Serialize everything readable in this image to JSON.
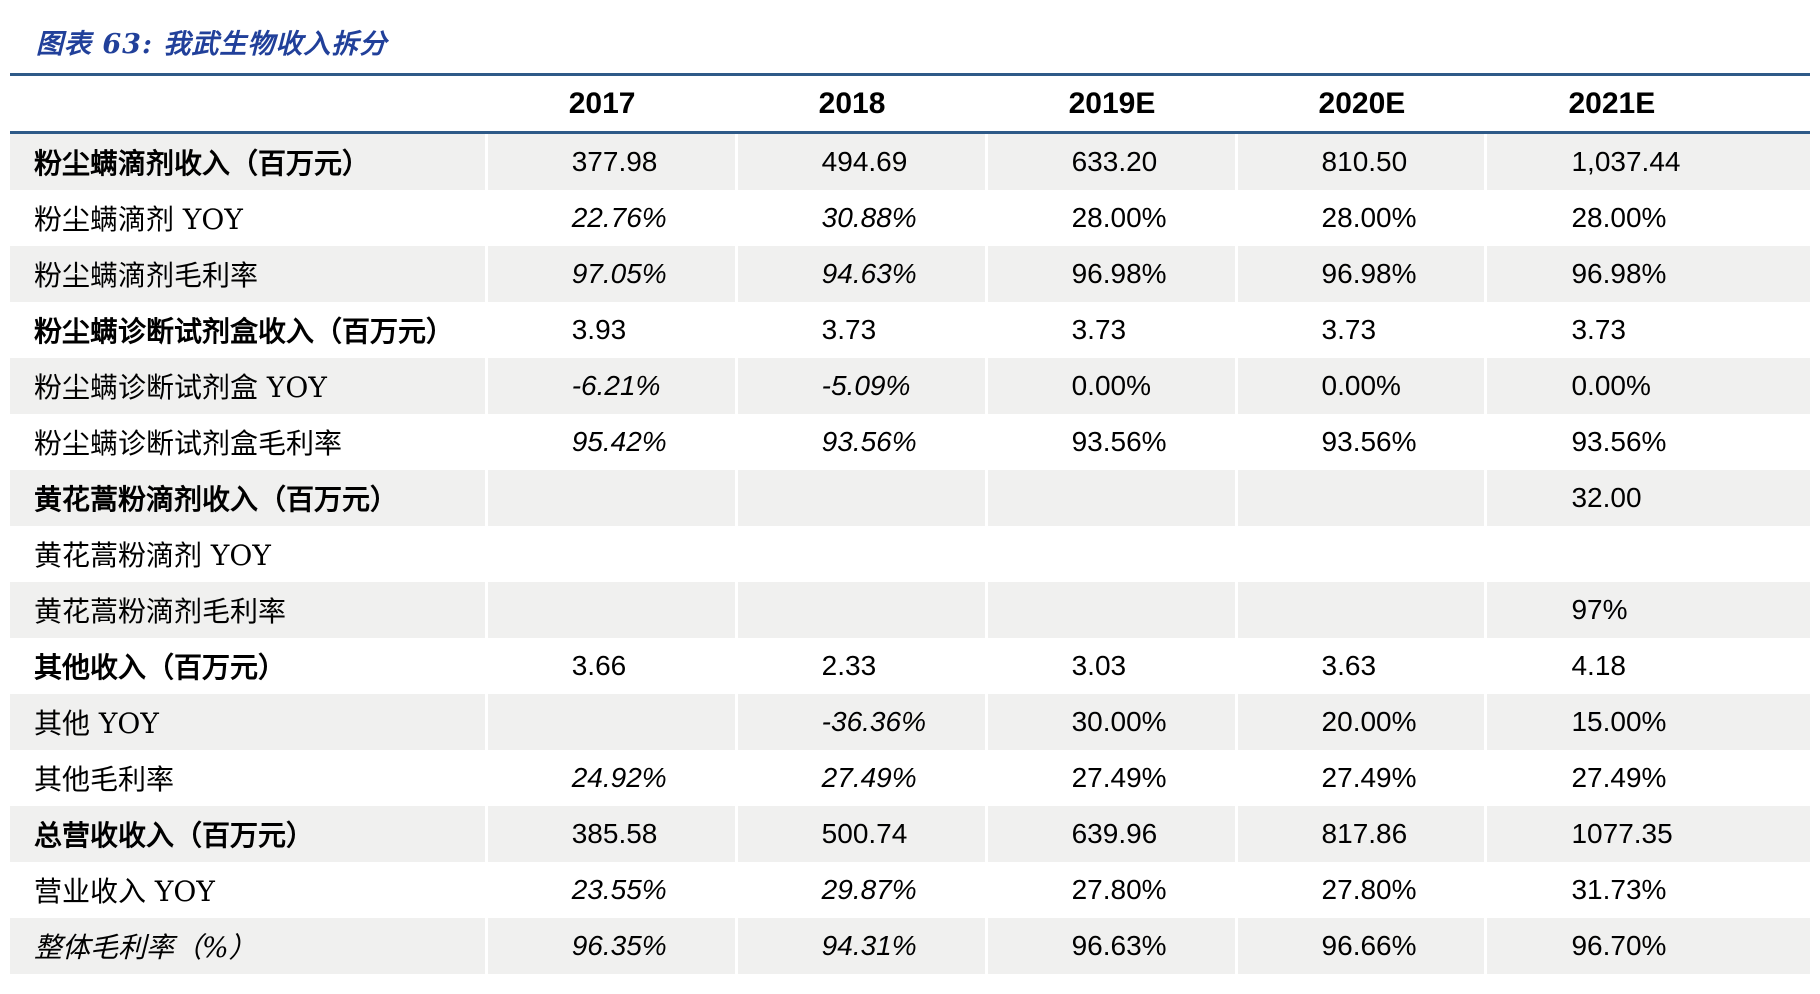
{
  "figure": {
    "title": "图表 63: 我武生物收入拆分"
  },
  "colors": {
    "title_blue": "#21409a",
    "rule_blue": "#2e5a88",
    "row_shade": "#f0f0ef",
    "text": "#000000"
  },
  "chart_data": {
    "type": "table",
    "title": "我武生物收入拆分",
    "columns": [
      "",
      "2017",
      "2018",
      "2019E",
      "2020E",
      "2021E"
    ],
    "rows": [
      {
        "label": "粉尘螨滴剂收入（百万元）",
        "bold": true,
        "label_italic": false,
        "hist_italic": false,
        "values": [
          "377.98",
          "494.69",
          "633.20",
          "810.50",
          "1,037.44"
        ]
      },
      {
        "label": "粉尘螨滴剂 YOY",
        "bold": false,
        "label_italic": false,
        "hist_italic": true,
        "values": [
          "22.76%",
          "30.88%",
          "28.00%",
          "28.00%",
          "28.00%"
        ]
      },
      {
        "label": "粉尘螨滴剂毛利率",
        "bold": false,
        "label_italic": false,
        "hist_italic": true,
        "values": [
          "97.05%",
          "94.63%",
          "96.98%",
          "96.98%",
          "96.98%"
        ]
      },
      {
        "label": "粉尘螨诊断试剂盒收入（百万元）",
        "bold": true,
        "label_italic": false,
        "hist_italic": false,
        "values": [
          "3.93",
          "3.73",
          "3.73",
          "3.73",
          "3.73"
        ]
      },
      {
        "label": "粉尘螨诊断试剂盒 YOY",
        "bold": false,
        "label_italic": false,
        "hist_italic": true,
        "values": [
          "-6.21%",
          "-5.09%",
          "0.00%",
          "0.00%",
          "0.00%"
        ]
      },
      {
        "label": "粉尘螨诊断试剂盒毛利率",
        "bold": false,
        "label_italic": false,
        "hist_italic": true,
        "values": [
          "95.42%",
          "93.56%",
          "93.56%",
          "93.56%",
          "93.56%"
        ]
      },
      {
        "label": "黄花蒿粉滴剂收入（百万元）",
        "bold": true,
        "label_italic": false,
        "hist_italic": false,
        "values": [
          "",
          "",
          "",
          "",
          "32.00"
        ]
      },
      {
        "label": "黄花蒿粉滴剂 YOY",
        "bold": false,
        "label_italic": false,
        "hist_italic": false,
        "values": [
          "",
          "",
          "",
          "",
          ""
        ]
      },
      {
        "label": "黄花蒿粉滴剂毛利率",
        "bold": false,
        "label_italic": false,
        "hist_italic": false,
        "values": [
          "",
          "",
          "",
          "",
          "97%"
        ]
      },
      {
        "label": "其他收入（百万元）",
        "bold": true,
        "label_italic": false,
        "hist_italic": false,
        "values": [
          "3.66",
          "2.33",
          "3.03",
          "3.63",
          "4.18"
        ]
      },
      {
        "label": "其他 YOY",
        "bold": false,
        "label_italic": false,
        "hist_italic": true,
        "values": [
          "",
          "-36.36%",
          "30.00%",
          "20.00%",
          "15.00%"
        ]
      },
      {
        "label": "其他毛利率",
        "bold": false,
        "label_italic": false,
        "hist_italic": true,
        "values": [
          "24.92%",
          "27.49%",
          "27.49%",
          "27.49%",
          "27.49%"
        ]
      },
      {
        "label": "总营收收入（百万元）",
        "bold": true,
        "label_italic": false,
        "hist_italic": false,
        "values": [
          "385.58",
          "500.74",
          "639.96",
          "817.86",
          "1077.35"
        ]
      },
      {
        "label": "营业收入 YOY",
        "bold": false,
        "label_italic": false,
        "hist_italic": true,
        "values": [
          "23.55%",
          "29.87%",
          "27.80%",
          "27.80%",
          "31.73%"
        ]
      },
      {
        "label": "整体毛利率（%）",
        "bold": false,
        "label_italic": true,
        "hist_italic": true,
        "values": [
          "96.35%",
          "94.31%",
          "96.63%",
          "96.66%",
          "96.70%"
        ]
      }
    ]
  }
}
